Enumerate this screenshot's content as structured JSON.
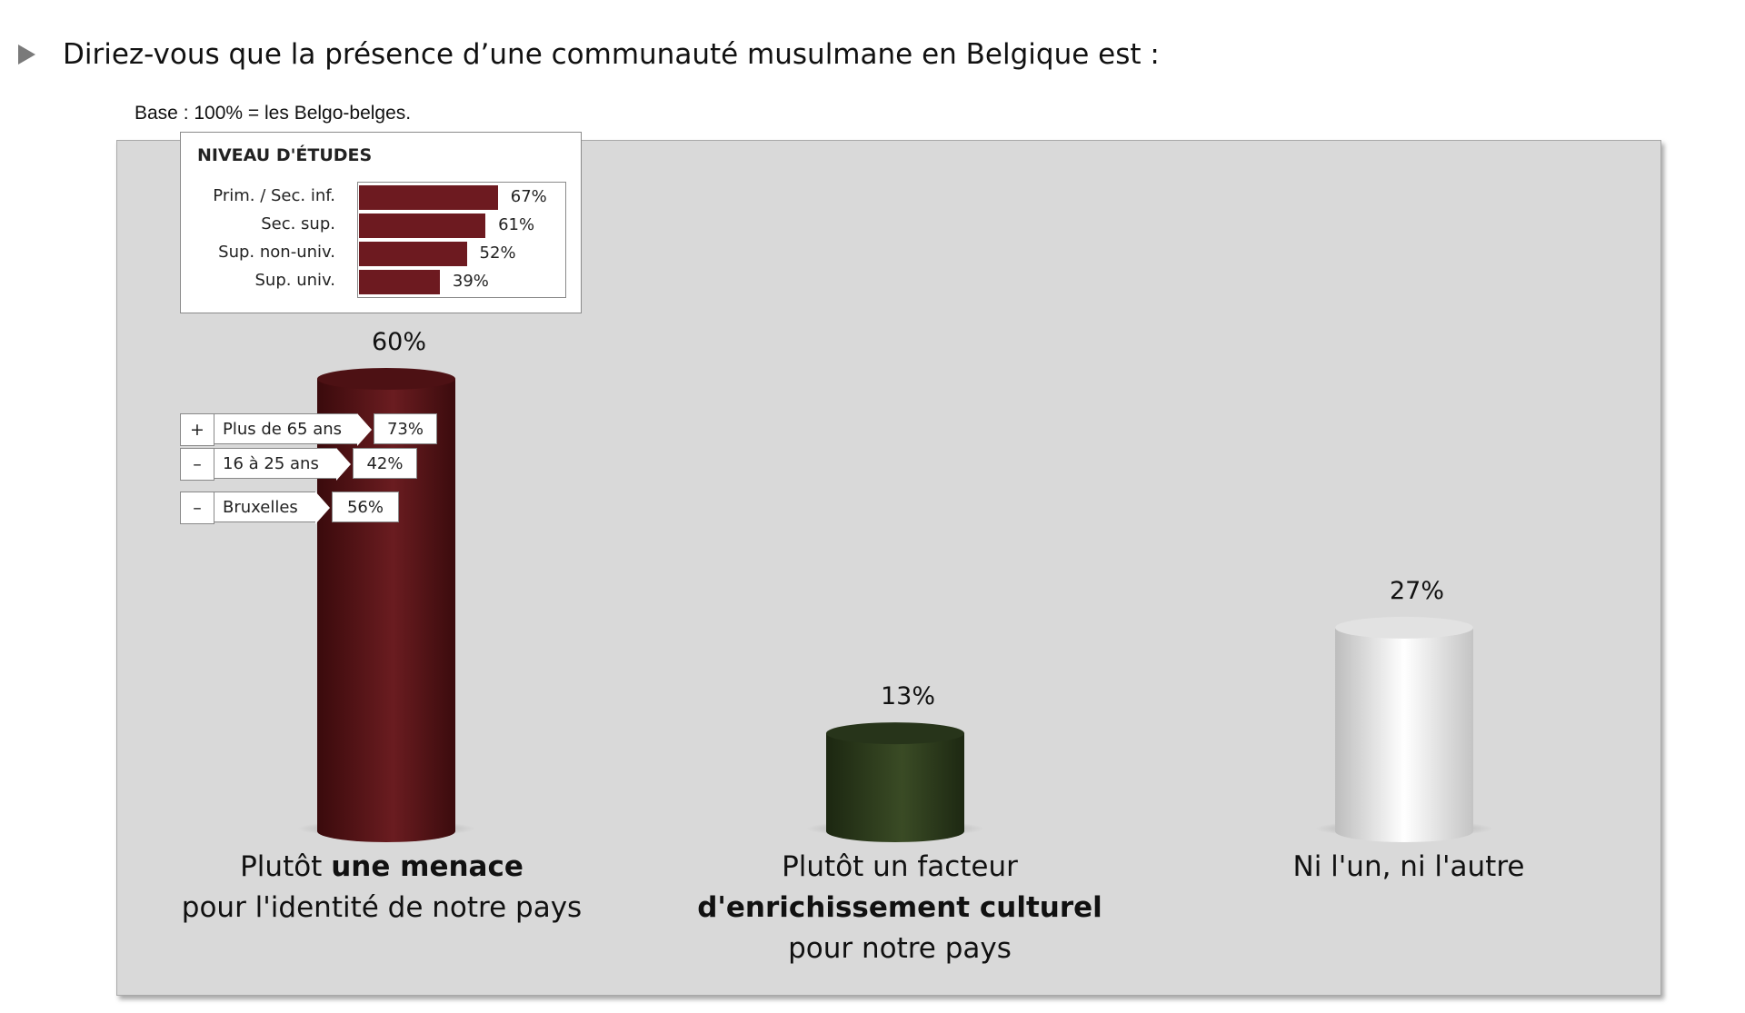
{
  "question": "Diriez-vous que la présence d’une communauté musulmane en Belgique est :",
  "base": "Base : 100% = les Belgo-belges.",
  "chart_data": {
    "type": "bar",
    "categories": [
      "Plutôt une menace pour l'identité de notre pays",
      "Plutôt un facteur d'enrichissement culturel pour notre pays",
      "Ni l'un, ni l'autre"
    ],
    "values": [
      60,
      13,
      27
    ],
    "value_labels": [
      "60%",
      "13%",
      "27%"
    ],
    "colors": [
      "#5e1518",
      "#2f3d1d",
      "#ececec"
    ],
    "ylim": [
      0,
      60
    ]
  },
  "labels": {
    "cat1": {
      "pre": "Plutôt ",
      "bold": "une menace",
      "line2": "pour l'identité de notre pays"
    },
    "cat2": {
      "line1": "Plutôt un facteur",
      "bold": "d'enrichissement culturel",
      "line3": "pour notre pays"
    },
    "cat3": {
      "line1": "Ni l'un, ni l'autre"
    }
  },
  "education": {
    "title": "NIVEAU D'ÉTUDES",
    "rows": [
      {
        "label": "Prim. / Sec. inf.",
        "value": 67,
        "text": "67%"
      },
      {
        "label": "Sec. sup.",
        "value": 61,
        "text": "61%"
      },
      {
        "label": "Sup. non-univ.",
        "value": 52,
        "text": "52%"
      },
      {
        "label": "Sup. univ.",
        "value": 39,
        "text": "39%"
      }
    ]
  },
  "callouts": [
    {
      "sign": "+",
      "label": "Plus de 65 ans",
      "value": "73%"
    },
    {
      "sign": "–",
      "label": "16 à 25 ans",
      "value": "42%"
    },
    {
      "sign": "–",
      "label": "Bruxelles",
      "value": "56%"
    }
  ]
}
